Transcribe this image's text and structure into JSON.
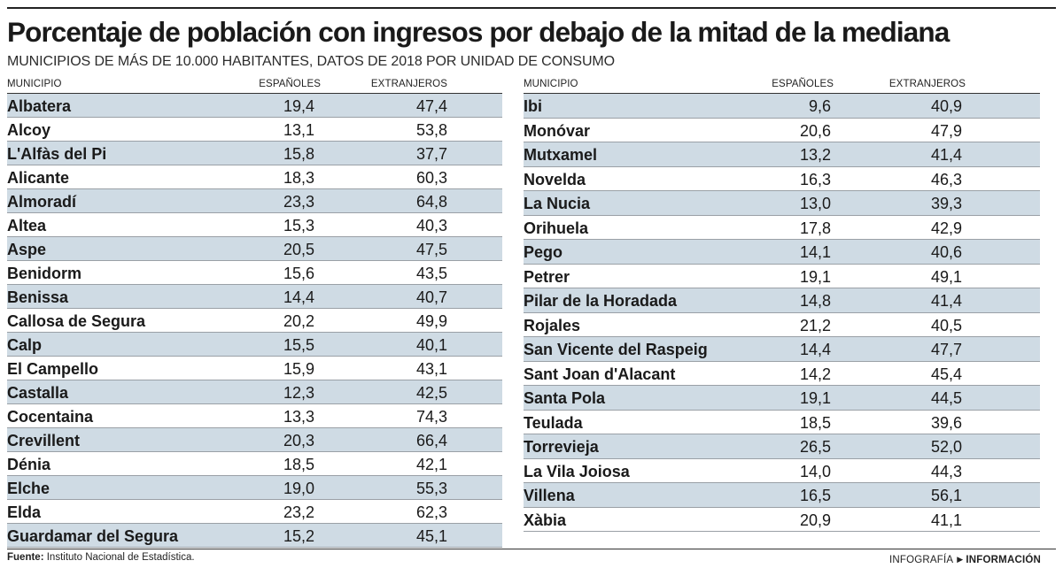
{
  "title": "Porcentaje de población con ingresos por debajo de la mitad de la mediana",
  "subtitle": "MUNICIPIOS DE MÁS DE 10.000 HABITANTES, DATOS DE 2018 POR UNIDAD DE CONSUMO",
  "headers": {
    "municipio": "MUNICIPIO",
    "espanoles": "ESPAÑOLES",
    "extranjeros": "EXTRANJEROS"
  },
  "chart_data": {
    "type": "table",
    "columns": [
      "MUNICIPIO",
      "ESPAÑOLES",
      "EXTRANJEROS"
    ],
    "left_rows": [
      {
        "municipio": "Albatera",
        "espanoles": "19,4",
        "extranjeros": "47,4"
      },
      {
        "municipio": "Alcoy",
        "espanoles": "13,1",
        "extranjeros": "53,8"
      },
      {
        "municipio": "L'Alfàs del Pi",
        "espanoles": "15,8",
        "extranjeros": "37,7"
      },
      {
        "municipio": "Alicante",
        "espanoles": "18,3",
        "extranjeros": "60,3"
      },
      {
        "municipio": "Almoradí",
        "espanoles": "23,3",
        "extranjeros": "64,8"
      },
      {
        "municipio": "Altea",
        "espanoles": "15,3",
        "extranjeros": "40,3"
      },
      {
        "municipio": "Aspe",
        "espanoles": "20,5",
        "extranjeros": "47,5"
      },
      {
        "municipio": "Benidorm",
        "espanoles": "15,6",
        "extranjeros": "43,5"
      },
      {
        "municipio": "Benissa",
        "espanoles": "14,4",
        "extranjeros": "40,7"
      },
      {
        "municipio": "Callosa de Segura",
        "espanoles": "20,2",
        "extranjeros": "49,9"
      },
      {
        "municipio": "Calp",
        "espanoles": "15,5",
        "extranjeros": "40,1"
      },
      {
        "municipio": "El Campello",
        "espanoles": "15,9",
        "extranjeros": "43,1"
      },
      {
        "municipio": "Castalla",
        "espanoles": "12,3",
        "extranjeros": "42,5"
      },
      {
        "municipio": "Cocentaina",
        "espanoles": "13,3",
        "extranjeros": "74,3"
      },
      {
        "municipio": "Crevillent",
        "espanoles": "20,3",
        "extranjeros": "66,4"
      },
      {
        "municipio": "Dénia",
        "espanoles": "18,5",
        "extranjeros": "42,1"
      },
      {
        "municipio": "Elche",
        "espanoles": "19,0",
        "extranjeros": "55,3"
      },
      {
        "municipio": "Elda",
        "espanoles": "23,2",
        "extranjeros": "62,3"
      },
      {
        "municipio": "Guardamar del Segura",
        "espanoles": "15,2",
        "extranjeros": "45,1"
      }
    ],
    "right_rows": [
      {
        "municipio": "Ibi",
        "espanoles": "9,6",
        "extranjeros": "40,9"
      },
      {
        "municipio": "Monóvar",
        "espanoles": "20,6",
        "extranjeros": "47,9"
      },
      {
        "municipio": "Mutxamel",
        "espanoles": "13,2",
        "extranjeros": "41,4"
      },
      {
        "municipio": "Novelda",
        "espanoles": "16,3",
        "extranjeros": "46,3"
      },
      {
        "municipio": "La Nucia",
        "espanoles": "13,0",
        "extranjeros": "39,3"
      },
      {
        "municipio": "Orihuela",
        "espanoles": "17,8",
        "extranjeros": "42,9"
      },
      {
        "municipio": "Pego",
        "espanoles": "14,1",
        "extranjeros": "40,6"
      },
      {
        "municipio": "Petrer",
        "espanoles": "19,1",
        "extranjeros": "49,1"
      },
      {
        "municipio": "Pilar de la Horadada",
        "espanoles": "14,8",
        "extranjeros": "41,4"
      },
      {
        "municipio": "Rojales",
        "espanoles": "21,2",
        "extranjeros": "40,5"
      },
      {
        "municipio": "San Vicente del Raspeig",
        "espanoles": "14,4",
        "extranjeros": "47,7"
      },
      {
        "municipio": "Sant Joan d'Alacant",
        "espanoles": "14,2",
        "extranjeros": "45,4"
      },
      {
        "municipio": "Santa Pola",
        "espanoles": "19,1",
        "extranjeros": "44,5"
      },
      {
        "municipio": "Teulada",
        "espanoles": "18,5",
        "extranjeros": "39,6"
      },
      {
        "municipio": "Torrevieja",
        "espanoles": "26,5",
        "extranjeros": "52,0"
      },
      {
        "municipio": "La Vila Joiosa",
        "espanoles": "14,0",
        "extranjeros": "44,3"
      },
      {
        "municipio": "Villena",
        "espanoles": "16,5",
        "extranjeros": "56,1"
      },
      {
        "municipio": "Xàbia",
        "espanoles": "20,9",
        "extranjeros": "41,1"
      }
    ]
  },
  "footer": {
    "source_label": "Fuente:",
    "source_text": " Instituto Nacional de Estadística.",
    "credit_label": "INFOGRAFÍA",
    "credit_arrow": "▶",
    "credit_brand": "INFORMACIÓN"
  },
  "colors": {
    "row_shade": "#cfdbe4",
    "text": "#1a1a1a",
    "rule": "#222222"
  }
}
